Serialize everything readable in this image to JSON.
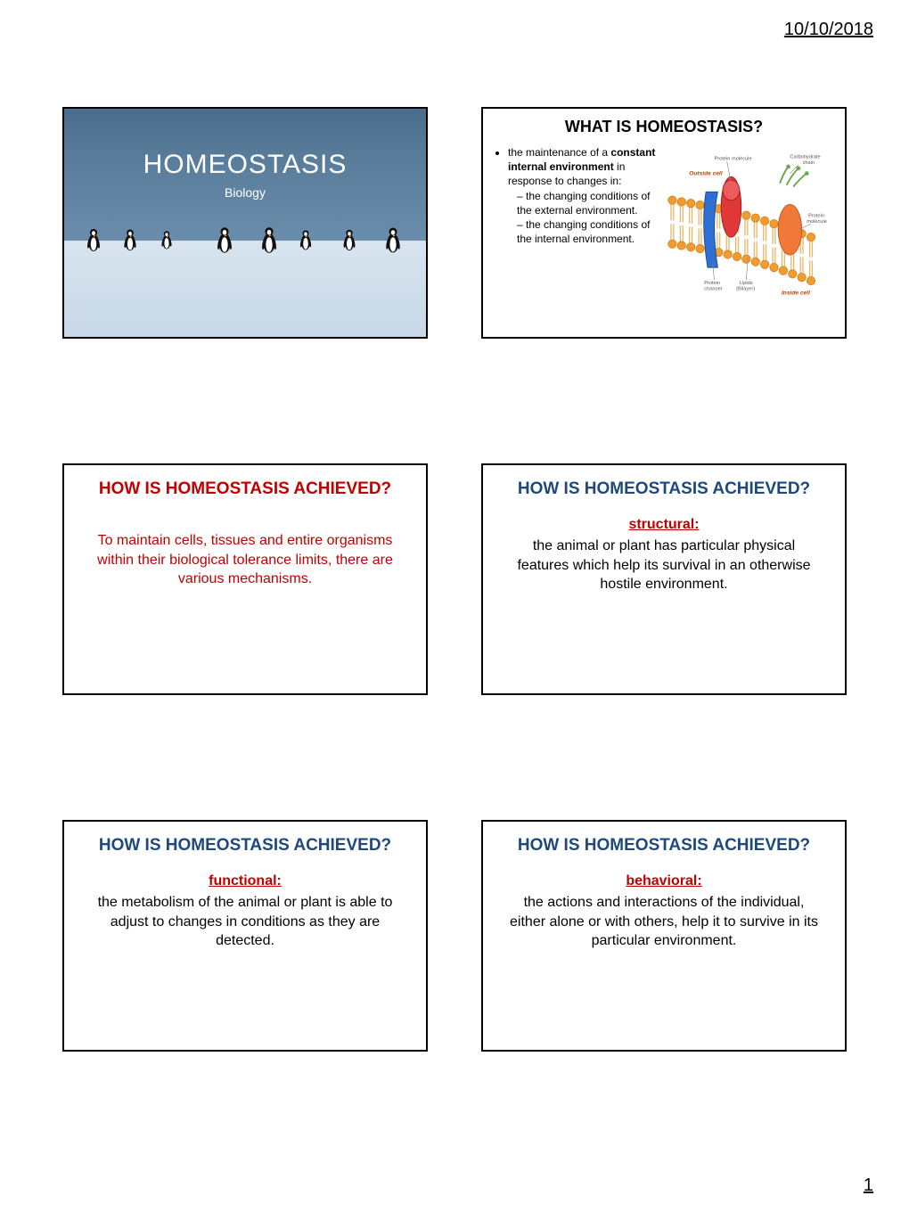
{
  "header": {
    "date": "10/10/2018"
  },
  "footer": {
    "page": "1"
  },
  "slide1": {
    "title": "HOMEOSTASIS",
    "subtitle": "Biology",
    "bg_sky": "#5a7d9c",
    "bg_snow": "#d0e0ec",
    "penguin_positions_pct": [
      8,
      18,
      28,
      44,
      56,
      66,
      78,
      90
    ]
  },
  "slide2": {
    "title": "WHAT IS HOMEOSTASIS?",
    "bullet_lead": "the maintenance of a ",
    "bullet_bold": "constant internal environment",
    "bullet_after": " in response to changes in:",
    "sub1": "the changing conditions of the external environment.",
    "sub2": "the changing conditions of the internal environment.",
    "diagram": {
      "label_outside": "Outside cell",
      "label_inside": "Inside cell",
      "label_protein_mol": "Protein molecule",
      "label_carb": "Carbohydrate chain",
      "label_protein_channel": "Protein channel",
      "label_lipids": "Lipids (Bilayer)",
      "label_protein_mol2": "Protein molecule",
      "colors": {
        "phospholipid_head": "#f29b2e",
        "phospholipid_tail": "#f2c179",
        "protein1": "#e03838",
        "protein2": "#2e6fd1",
        "carb": "#6aa84f"
      }
    }
  },
  "slide3": {
    "title": "HOW IS HOMEOSTASIS ACHIEVED?",
    "title_color": "#c00000",
    "body": "To maintain cells, tissues and entire organisms within their biological tolerance limits, there are various mechanisms.",
    "body_color": "#c00000"
  },
  "slide4": {
    "title": "HOW IS HOMEOSTASIS ACHIEVED?",
    "title_color": "#1f497d",
    "subhead": "structural",
    "subhead_color": "#c00000",
    "body": "the animal or plant has particular physical features which help its survival in an otherwise hostile environment."
  },
  "slide5": {
    "title": "HOW IS HOMEOSTASIS ACHIEVED?",
    "title_color": "#1f497d",
    "subhead": "functional",
    "subhead_color": "#c00000",
    "body": "the metabolism of the animal or plant is able to adjust to changes in conditions as they are detected."
  },
  "slide6": {
    "title": "HOW IS HOMEOSTASIS ACHIEVED?",
    "title_color": "#1f497d",
    "subhead": "behavioral",
    "subhead_color": "#c00000",
    "body": "the actions and interactions of the individual, either alone or with others, help it to survive in its particular environment."
  }
}
